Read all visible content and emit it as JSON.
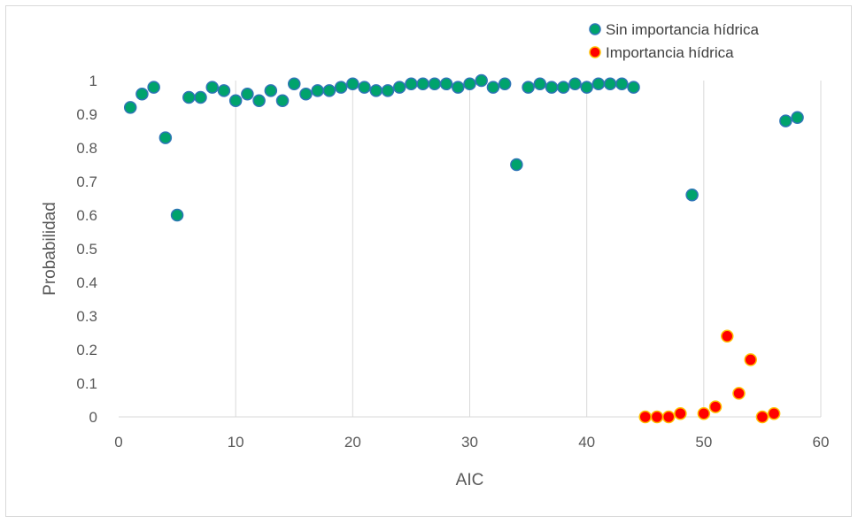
{
  "chart_data": {
    "type": "scatter",
    "title": "",
    "xlabel": "AIC",
    "ylabel": "Probabilidad",
    "xlim": [
      0,
      60
    ],
    "ylim": [
      0,
      1
    ],
    "xticks": [
      0,
      10,
      20,
      30,
      40,
      50,
      60
    ],
    "yticks": [
      0,
      0.1,
      0.2,
      0.3,
      0.4,
      0.5,
      0.6,
      0.7,
      0.8,
      0.9,
      1
    ],
    "grid": "vertical gridlines",
    "legend_position": "top-right",
    "series": [
      {
        "name": "Sin importancia hídrica",
        "color": "#00a36c",
        "edge_color": "#2e75b6",
        "x": [
          1,
          2,
          3,
          4,
          5,
          6,
          7,
          8,
          9,
          10,
          11,
          12,
          13,
          14,
          15,
          16,
          17,
          18,
          19,
          20,
          21,
          22,
          23,
          24,
          25,
          26,
          27,
          28,
          29,
          30,
          31,
          32,
          33,
          34,
          35,
          36,
          37,
          38,
          39,
          40,
          41,
          42,
          43,
          44,
          49,
          57,
          58
        ],
        "y": [
          0.92,
          0.96,
          0.98,
          0.83,
          0.6,
          0.95,
          0.95,
          0.98,
          0.97,
          0.94,
          0.96,
          0.94,
          0.97,
          0.94,
          0.99,
          0.96,
          0.97,
          0.97,
          0.98,
          0.99,
          0.98,
          0.97,
          0.97,
          0.98,
          0.99,
          0.99,
          0.99,
          0.99,
          0.98,
          0.99,
          1.0,
          0.98,
          0.99,
          0.75,
          0.98,
          0.99,
          0.98,
          0.98,
          0.99,
          0.98,
          0.99,
          0.99,
          0.99,
          0.98,
          0.66,
          0.88,
          0.89
        ]
      },
      {
        "name": "Importancia hídrica",
        "color": "#ff0000",
        "edge_color": "#ffc000",
        "x": [
          45,
          46,
          47,
          48,
          50,
          51,
          52,
          53,
          54,
          55,
          56
        ],
        "y": [
          0.0,
          0.0,
          0.0,
          0.01,
          0.01,
          0.03,
          0.24,
          0.07,
          0.17,
          0.0,
          0.01
        ]
      }
    ],
    "axis_color": "#d9d9d9",
    "grid_color": "#d9d9d9",
    "text_color": "#595959"
  }
}
